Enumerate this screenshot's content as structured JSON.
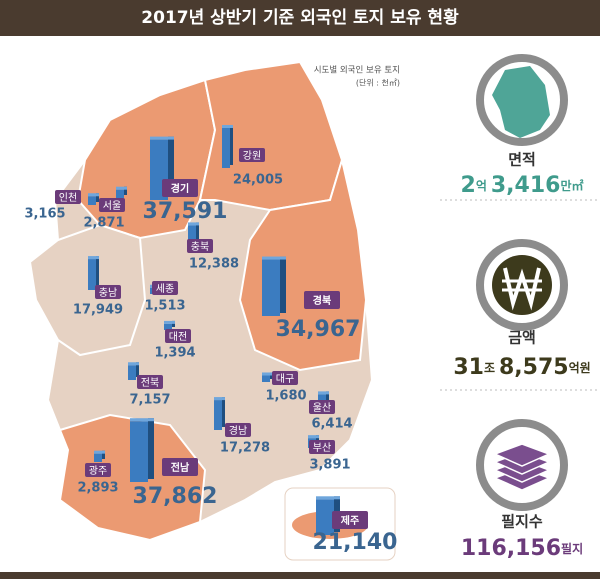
{
  "header": {
    "title": "2017년 상반기 기준 외국인 토지 보유 현황"
  },
  "map": {
    "note": "시도별 외국인 보유 토지",
    "unit": "(단위 : 천㎡)",
    "regions": [
      {
        "name": "인천",
        "value": 3165,
        "value_label": "3,165"
      },
      {
        "name": "서울",
        "value": 2871,
        "value_label": "2,871"
      },
      {
        "name": "경기",
        "value": 37591,
        "value_label": "37,591"
      },
      {
        "name": "강원",
        "value": 24005,
        "value_label": "24,005"
      },
      {
        "name": "충북",
        "value": 12388,
        "value_label": "12,388"
      },
      {
        "name": "충남",
        "value": 17949,
        "value_label": "17,949"
      },
      {
        "name": "세종",
        "value": 1513,
        "value_label": "1,513"
      },
      {
        "name": "대전",
        "value": 1394,
        "value_label": "1,394"
      },
      {
        "name": "경북",
        "value": 34967,
        "value_label": "34,967"
      },
      {
        "name": "대구",
        "value": 1680,
        "value_label": "1,680"
      },
      {
        "name": "전북",
        "value": 7157,
        "value_label": "7,157"
      },
      {
        "name": "경남",
        "value": 17278,
        "value_label": "17,278"
      },
      {
        "name": "울산",
        "value": 6414,
        "value_label": "6,414"
      },
      {
        "name": "부산",
        "value": 3891,
        "value_label": "3,891"
      },
      {
        "name": "광주",
        "value": 2893,
        "value_label": "2,893"
      },
      {
        "name": "전남",
        "value": 37862,
        "value_label": "37,862"
      },
      {
        "name": "제주",
        "value": 21140,
        "value_label": "21,140"
      }
    ]
  },
  "summary": [
    {
      "label": "면적",
      "parts": [
        "2",
        "억",
        "3,416",
        "만㎡"
      ]
    },
    {
      "label": "금액",
      "parts": [
        "31",
        "조",
        "8,575",
        "억원"
      ]
    },
    {
      "label": "필지수",
      "parts": [
        "116,156",
        "필지"
      ]
    }
  ]
}
